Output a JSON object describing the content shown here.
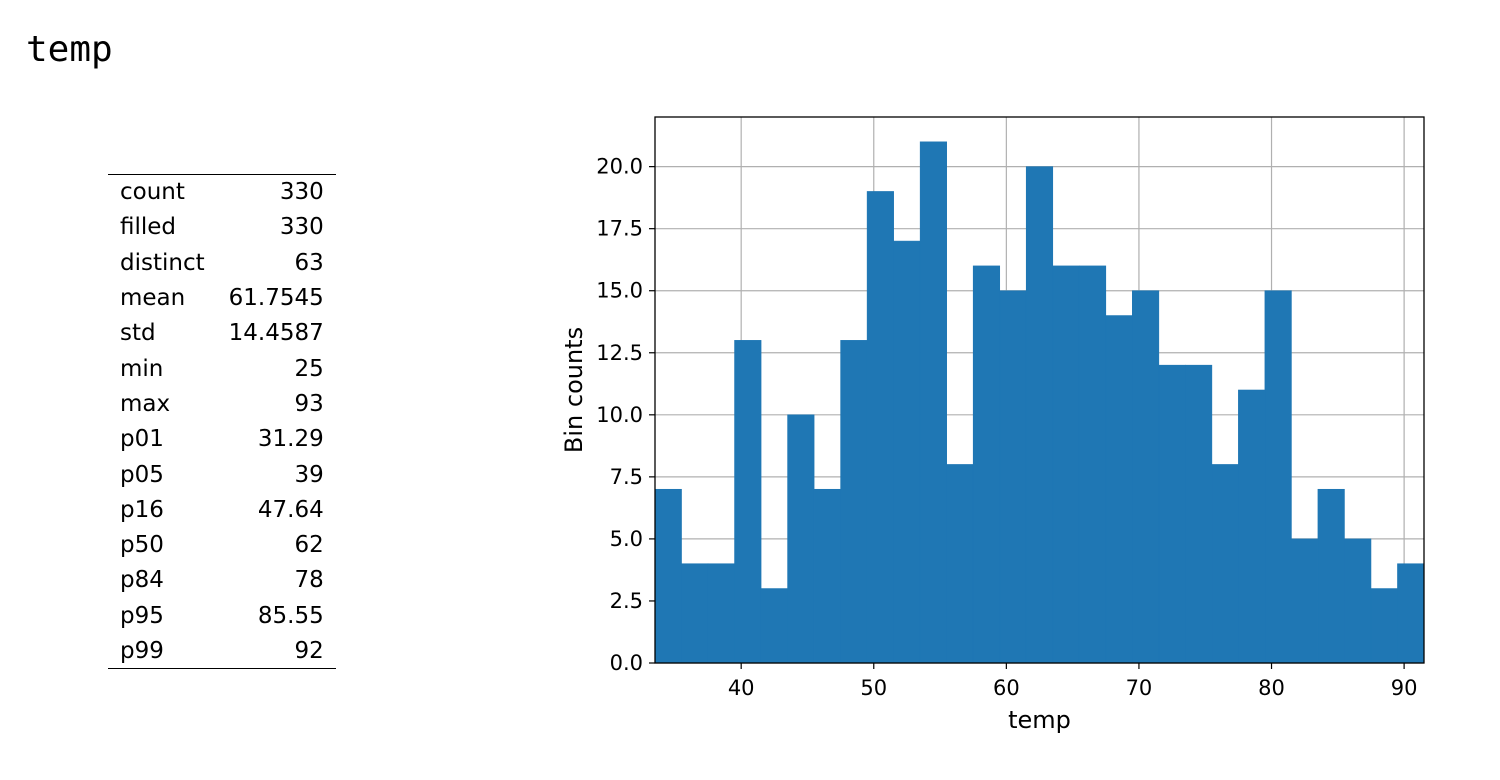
{
  "title": "temp",
  "stats": [
    {
      "label": "count",
      "value": "330"
    },
    {
      "label": "filled",
      "value": "330"
    },
    {
      "label": "distinct",
      "value": "63"
    },
    {
      "label": "mean",
      "value": "61.7545"
    },
    {
      "label": "std",
      "value": "14.4587"
    },
    {
      "label": "min",
      "value": "25"
    },
    {
      "label": "max",
      "value": "93"
    },
    {
      "label": "p01",
      "value": "31.29"
    },
    {
      "label": "p05",
      "value": "39"
    },
    {
      "label": "p16",
      "value": "47.64"
    },
    {
      "label": "p50",
      "value": "62"
    },
    {
      "label": "p84",
      "value": "78"
    },
    {
      "label": "p95",
      "value": "85.55"
    },
    {
      "label": "p99",
      "value": "92"
    }
  ],
  "chart_data": {
    "type": "bar",
    "xlabel": "temp",
    "ylabel": "Bin counts",
    "xlim": [
      33.5,
      91.5
    ],
    "ylim": [
      0,
      22
    ],
    "grid": true,
    "bar_color": "#1f77b4",
    "bins": [
      {
        "x0": 33.5,
        "x1": 35.5,
        "count": 7
      },
      {
        "x0": 35.5,
        "x1": 37.5,
        "count": 4
      },
      {
        "x0": 37.5,
        "x1": 39.5,
        "count": 4
      },
      {
        "x0": 39.5,
        "x1": 41.5,
        "count": 13
      },
      {
        "x0": 41.5,
        "x1": 43.5,
        "count": 3
      },
      {
        "x0": 43.5,
        "x1": 45.5,
        "count": 10
      },
      {
        "x0": 45.5,
        "x1": 47.5,
        "count": 7
      },
      {
        "x0": 47.5,
        "x1": 49.5,
        "count": 13
      },
      {
        "x0": 49.5,
        "x1": 51.5,
        "count": 19
      },
      {
        "x0": 51.5,
        "x1": 53.5,
        "count": 17
      },
      {
        "x0": 53.5,
        "x1": 55.5,
        "count": 21
      },
      {
        "x0": 55.5,
        "x1": 57.5,
        "count": 8
      },
      {
        "x0": 57.5,
        "x1": 59.5,
        "count": 16
      },
      {
        "x0": 59.5,
        "x1": 61.5,
        "count": 15
      },
      {
        "x0": 61.5,
        "x1": 63.5,
        "count": 20
      },
      {
        "x0": 63.5,
        "x1": 65.5,
        "count": 16
      },
      {
        "x0": 65.5,
        "x1": 67.5,
        "count": 16
      },
      {
        "x0": 67.5,
        "x1": 69.5,
        "count": 14
      },
      {
        "x0": 69.5,
        "x1": 71.5,
        "count": 15
      },
      {
        "x0": 71.5,
        "x1": 73.5,
        "count": 12
      },
      {
        "x0": 73.5,
        "x1": 75.5,
        "count": 12
      },
      {
        "x0": 75.5,
        "x1": 77.5,
        "count": 8
      },
      {
        "x0": 77.5,
        "x1": 79.5,
        "count": 11
      },
      {
        "x0": 79.5,
        "x1": 81.5,
        "count": 15
      },
      {
        "x0": 81.5,
        "x1": 83.5,
        "count": 5
      },
      {
        "x0": 83.5,
        "x1": 85.5,
        "count": 7
      },
      {
        "x0": 85.5,
        "x1": 87.5,
        "count": 5
      },
      {
        "x0": 87.5,
        "x1": 89.5,
        "count": 3
      },
      {
        "x0": 89.5,
        "x1": 91.5,
        "count": 4
      }
    ],
    "xticks": [
      "40",
      "50",
      "60",
      "70",
      "80",
      "90"
    ],
    "yticks": [
      "0.0",
      "2.5",
      "5.0",
      "7.5",
      "10.0",
      "12.5",
      "15.0",
      "17.5",
      "20.0"
    ]
  }
}
